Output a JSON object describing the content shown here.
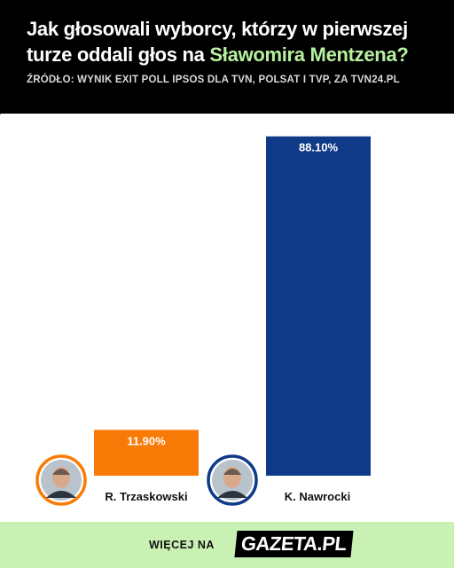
{
  "header": {
    "title_part1": "Jak głosowali wyborcy, którzy w pierwszej turze oddali głos na ",
    "title_highlight": "Sławomira Mentzena?",
    "source": "ŹRÓDŁO: WYNIK EXIT POLL IPSOS DLA TVN, POLSAT I TVP, ZA TVN24.PL"
  },
  "colors": {
    "highlight": "#b8f0a0",
    "footer_bg": "#c9f1b4"
  },
  "chart_data": {
    "type": "bar",
    "categories": [
      "R. Trzaskowski",
      "K. Nawrocki"
    ],
    "values": [
      11.9,
      88.1
    ],
    "value_labels": [
      "11.90%",
      "88.10%"
    ],
    "colors": [
      "#f97b07",
      "#0f3a87"
    ],
    "ylim": [
      0,
      100
    ],
    "grid": false,
    "title": "",
    "xlabel": "",
    "ylabel": ""
  },
  "footer": {
    "text": "WIĘCEJ NA",
    "logo": "GAZETA.PL"
  }
}
